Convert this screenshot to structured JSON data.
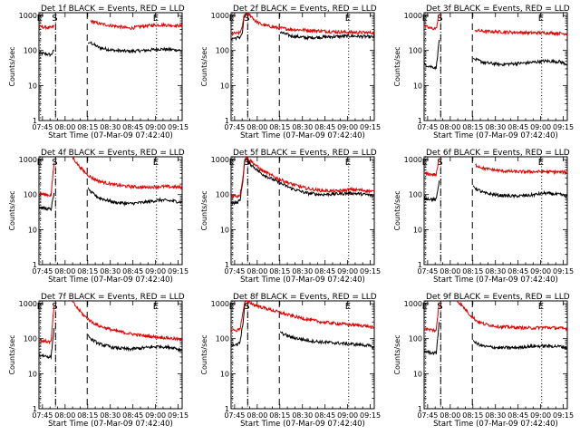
{
  "figure": {
    "ylabel": "Counts/sec",
    "xlabel": "Start Time (07-Mar-09 07:42:40)",
    "xticks": [
      "07:45",
      "08:00",
      "08:15",
      "08:30",
      "08:45",
      "09:00",
      "09:15"
    ],
    "yticks": [
      "1",
      "10",
      "100",
      "1000"
    ],
    "colors": {
      "events": "#000000",
      "lld": "#e00000",
      "frame": "#000000"
    }
  },
  "chart_data": [
    {
      "type": "line",
      "title": "Det 1f BLACK = Events, RED = LLD",
      "x_unit": "minutes after 07:42:40",
      "xlim": [
        0,
        95
      ],
      "ylim": [
        1,
        1200
      ],
      "yscale": "log",
      "markers": [
        {
          "label": "E",
          "x": 1,
          "style": "dotted"
        },
        {
          "label": "S",
          "x": 11,
          "style": "dotted"
        },
        {
          "label": "",
          "x": 11,
          "style": "dashed"
        },
        {
          "label": "",
          "x": 32,
          "style": "dashed"
        },
        {
          "label": "E",
          "x": 78,
          "style": "dotted"
        }
      ],
      "series": [
        {
          "name": "BLACK = Events",
          "x": [
            0,
            4,
            8,
            10,
            11,
            32,
            32.5,
            34,
            40,
            50,
            60,
            70,
            80,
            90,
            95
          ],
          "values": [
            85,
            80,
            75,
            100,
            0,
            0,
            160,
            170,
            120,
            100,
            95,
            100,
            110,
            105,
            100
          ]
        },
        {
          "name": "RED = LLD",
          "x": [
            0,
            4,
            8,
            10,
            11,
            32,
            34,
            40,
            50,
            60,
            70,
            80,
            90,
            95
          ],
          "values": [
            480,
            460,
            440,
            500,
            0,
            0,
            700,
            580,
            500,
            430,
            500,
            540,
            520,
            500
          ]
        }
      ]
    },
    {
      "type": "line",
      "title": "Det 2f BLACK = Events, RED = LLD",
      "x_unit": "minutes after 07:42:40",
      "xlim": [
        0,
        95
      ],
      "ylim": [
        1,
        1200
      ],
      "yscale": "log",
      "markers": [
        {
          "label": "E",
          "x": 1,
          "style": "dotted"
        },
        {
          "label": "S",
          "x": 11,
          "style": "dotted"
        },
        {
          "label": "",
          "x": 11,
          "style": "dashed"
        },
        {
          "label": "",
          "x": 32,
          "style": "dashed"
        },
        {
          "label": "E",
          "x": 78,
          "style": "dotted"
        }
      ],
      "series": [
        {
          "name": "BLACK = Events",
          "x": [
            0,
            4,
            6,
            7.5,
            8.5,
            10,
            11,
            32,
            32.5,
            40,
            50,
            60,
            70,
            80,
            95
          ],
          "values": [
            220,
            230,
            240,
            320,
            850,
            1100,
            0,
            0,
            330,
            260,
            230,
            240,
            250,
            260,
            240
          ]
        },
        {
          "name": "RED = LLD",
          "x": [
            0,
            4,
            6,
            7.5,
            8.5,
            10,
            12,
            14,
            16,
            20,
            30,
            40,
            50,
            60,
            70,
            80,
            95
          ],
          "values": [
            300,
            310,
            320,
            500,
            1000,
            1150,
            1050,
            900,
            700,
            550,
            450,
            400,
            380,
            360,
            340,
            330,
            320
          ]
        }
      ]
    },
    {
      "type": "line",
      "title": "Det 3f BLACK = Events, RED = LLD",
      "x_unit": "minutes after 07:42:40",
      "xlim": [
        0,
        95
      ],
      "ylim": [
        1,
        1200
      ],
      "yscale": "log",
      "markers": [
        {
          "label": "E",
          "x": 1,
          "style": "dotted"
        },
        {
          "label": "S",
          "x": 11,
          "style": "dotted"
        },
        {
          "label": "",
          "x": 11,
          "style": "dashed"
        },
        {
          "label": "",
          "x": 32,
          "style": "dashed"
        },
        {
          "label": "E",
          "x": 78,
          "style": "dotted"
        }
      ],
      "series": [
        {
          "name": "BLACK = Events",
          "x": [
            0,
            4,
            8,
            10,
            11,
            32,
            32.5,
            34,
            40,
            50,
            60,
            70,
            80,
            90,
            95
          ],
          "values": [
            40,
            35,
            32,
            200,
            0,
            0,
            60,
            55,
            45,
            40,
            42,
            45,
            50,
            48,
            40
          ]
        },
        {
          "name": "RED = LLD",
          "x": [
            0,
            4,
            8,
            10,
            11,
            32,
            34,
            40,
            50,
            60,
            70,
            80,
            90,
            95
          ],
          "values": [
            500,
            430,
            420,
            1100,
            0,
            0,
            380,
            350,
            340,
            330,
            320,
            320,
            310,
            300
          ]
        }
      ]
    },
    {
      "type": "line",
      "title": "Det 4f BLACK = Events, RED = LLD",
      "x_unit": "minutes after 07:42:40",
      "xlim": [
        0,
        95
      ],
      "ylim": [
        1,
        1200
      ],
      "yscale": "log",
      "markers": [
        {
          "label": "E",
          "x": 1,
          "style": "dotted"
        },
        {
          "label": "S",
          "x": 11,
          "style": "dotted"
        },
        {
          "label": "",
          "x": 11,
          "style": "dashed"
        },
        {
          "label": "",
          "x": 32,
          "style": "dashed"
        },
        {
          "label": "E",
          "x": 78,
          "style": "dotted"
        }
      ],
      "series": [
        {
          "name": "BLACK = Events",
          "x": [
            0,
            4,
            8,
            10,
            11,
            32,
            32.5,
            34,
            40,
            50,
            60,
            70,
            80,
            90,
            95
          ],
          "values": [
            45,
            40,
            38,
            110,
            0,
            0,
            160,
            120,
            80,
            60,
            55,
            60,
            70,
            65,
            60
          ]
        },
        {
          "name": "RED = LLD",
          "x": [
            0,
            4,
            8,
            10,
            11,
            22,
            26,
            30,
            35,
            40,
            50,
            60,
            70,
            80,
            90,
            95
          ],
          "values": [
            110,
            100,
            95,
            800,
            0,
            1200,
            700,
            450,
            300,
            240,
            190,
            170,
            160,
            170,
            165,
            160
          ]
        }
      ]
    },
    {
      "type": "line",
      "title": "Det 5f BLACK = Events, RED = LLD",
      "x_unit": "minutes after 07:42:40",
      "xlim": [
        0,
        95
      ],
      "ylim": [
        1,
        1200
      ],
      "yscale": "log",
      "markers": [
        {
          "label": "E",
          "x": 1,
          "style": "dotted"
        },
        {
          "label": "S",
          "x": 11,
          "style": "dotted"
        },
        {
          "label": "",
          "x": 11,
          "style": "dashed"
        },
        {
          "label": "",
          "x": 32,
          "style": "dashed"
        },
        {
          "label": "E",
          "x": 78,
          "style": "dotted"
        }
      ],
      "series": [
        {
          "name": "BLACK = Events",
          "x": [
            0,
            4,
            6,
            8,
            9,
            10,
            12,
            20,
            30,
            40,
            50,
            60,
            70,
            80,
            90,
            95
          ],
          "values": [
            60,
            58,
            70,
            300,
            900,
            1050,
            800,
            400,
            240,
            150,
            110,
            100,
            105,
            110,
            100,
            90
          ]
        },
        {
          "name": "RED = LLD",
          "x": [
            0,
            4,
            6,
            8,
            9,
            10,
            12,
            20,
            30,
            40,
            50,
            60,
            70,
            80,
            90,
            95
          ],
          "values": [
            95,
            90,
            100,
            350,
            1000,
            1150,
            1000,
            500,
            300,
            200,
            150,
            130,
            125,
            140,
            130,
            120
          ]
        }
      ]
    },
    {
      "type": "line",
      "title": "Det 6f BLACK = Events, RED = LLD",
      "x_unit": "minutes after 07:42:40",
      "xlim": [
        0,
        95
      ],
      "ylim": [
        1,
        1200
      ],
      "yscale": "log",
      "markers": [
        {
          "label": "E",
          "x": 1,
          "style": "dotted"
        },
        {
          "label": "S",
          "x": 11,
          "style": "dotted"
        },
        {
          "label": "",
          "x": 11,
          "style": "dashed"
        },
        {
          "label": "",
          "x": 32,
          "style": "dashed"
        },
        {
          "label": "E",
          "x": 78,
          "style": "dotted"
        }
      ],
      "series": [
        {
          "name": "BLACK = Events",
          "x": [
            0,
            4,
            8,
            10,
            11,
            32,
            32.5,
            34,
            40,
            50,
            60,
            70,
            80,
            90,
            95
          ],
          "values": [
            80,
            75,
            70,
            250,
            0,
            0,
            180,
            150,
            110,
            95,
            90,
            95,
            110,
            100,
            90
          ]
        },
        {
          "name": "RED = LLD",
          "x": [
            0,
            4,
            8,
            10,
            11,
            32,
            34,
            40,
            50,
            60,
            70,
            80,
            90,
            95
          ],
          "values": [
            400,
            380,
            370,
            1100,
            0,
            0,
            700,
            550,
            480,
            450,
            450,
            450,
            440,
            430
          ]
        }
      ]
    },
    {
      "type": "line",
      "title": "Det 7f BLACK = Events, RED = LLD",
      "x_unit": "minutes after 07:42:40",
      "xlim": [
        0,
        95
      ],
      "ylim": [
        1,
        1200
      ],
      "yscale": "log",
      "markers": [
        {
          "label": "E",
          "x": 1,
          "style": "dotted"
        },
        {
          "label": "S",
          "x": 11,
          "style": "dotted"
        },
        {
          "label": "",
          "x": 11,
          "style": "dashed"
        },
        {
          "label": "",
          "x": 32,
          "style": "dashed"
        },
        {
          "label": "E",
          "x": 78,
          "style": "dotted"
        }
      ],
      "series": [
        {
          "name": "BLACK = Events",
          "x": [
            0,
            4,
            8,
            10,
            11,
            32,
            32.5,
            34,
            40,
            50,
            60,
            70,
            80,
            90,
            95
          ],
          "values": [
            35,
            32,
            30,
            200,
            0,
            0,
            130,
            100,
            70,
            55,
            50,
            55,
            60,
            55,
            45
          ]
        },
        {
          "name": "RED = LLD",
          "x": [
            0,
            4,
            8,
            10,
            11,
            22,
            26,
            30,
            35,
            40,
            50,
            60,
            70,
            80,
            90,
            95
          ],
          "values": [
            90,
            85,
            80,
            900,
            0,
            1150,
            700,
            450,
            300,
            230,
            170,
            140,
            120,
            110,
            100,
            90
          ]
        }
      ]
    },
    {
      "type": "line",
      "title": "Det 8f BLACK = Events, RED = LLD",
      "x_unit": "minutes after 07:42:40",
      "xlim": [
        0,
        95
      ],
      "ylim": [
        1,
        1200
      ],
      "yscale": "log",
      "markers": [
        {
          "label": "E",
          "x": 1,
          "style": "dotted"
        },
        {
          "label": "S",
          "x": 11,
          "style": "dotted"
        },
        {
          "label": "",
          "x": 11,
          "style": "dashed"
        },
        {
          "label": "",
          "x": 32,
          "style": "dashed"
        },
        {
          "label": "E",
          "x": 78,
          "style": "dotted"
        }
      ],
      "series": [
        {
          "name": "BLACK = Events",
          "x": [
            0,
            4,
            6,
            8,
            9,
            10,
            11,
            32,
            32.5,
            34,
            40,
            50,
            60,
            70,
            80,
            90,
            95
          ],
          "values": [
            70,
            65,
            80,
            300,
            900,
            1000,
            0,
            0,
            160,
            140,
            110,
            90,
            80,
            75,
            70,
            65,
            55
          ]
        },
        {
          "name": "RED = LLD",
          "x": [
            0,
            4,
            6,
            8,
            9,
            10,
            12,
            16,
            20,
            30,
            40,
            50,
            60,
            70,
            80,
            90,
            95
          ],
          "values": [
            180,
            170,
            200,
            600,
            1100,
            1200,
            1100,
            900,
            800,
            600,
            450,
            360,
            300,
            270,
            250,
            230,
            200
          ]
        }
      ]
    },
    {
      "type": "line",
      "title": "Det 9f BLACK = Events, RED = LLD",
      "x_unit": "minutes after 07:42:40",
      "xlim": [
        0,
        95
      ],
      "ylim": [
        1,
        1200
      ],
      "yscale": "log",
      "markers": [
        {
          "label": "E",
          "x": 1,
          "style": "dotted"
        },
        {
          "label": "S",
          "x": 11,
          "style": "dotted"
        },
        {
          "label": "",
          "x": 11,
          "style": "dashed"
        },
        {
          "label": "",
          "x": 32,
          "style": "dashed"
        },
        {
          "label": "E",
          "x": 78,
          "style": "dotted"
        }
      ],
      "series": [
        {
          "name": "BLACK = Events",
          "x": [
            0,
            4,
            8,
            10,
            11,
            32,
            32.5,
            34,
            40,
            50,
            60,
            70,
            80,
            90,
            95
          ],
          "values": [
            45,
            40,
            38,
            300,
            0,
            0,
            90,
            75,
            60,
            55,
            55,
            60,
            62,
            60,
            55
          ]
        },
        {
          "name": "RED = LLD",
          "x": [
            0,
            4,
            8,
            10,
            11,
            22,
            26,
            30,
            35,
            40,
            50,
            60,
            70,
            80,
            90,
            95
          ],
          "values": [
            190,
            180,
            170,
            1100,
            0,
            1200,
            800,
            500,
            320,
            260,
            220,
            210,
            200,
            210,
            200,
            190
          ]
        }
      ]
    }
  ]
}
